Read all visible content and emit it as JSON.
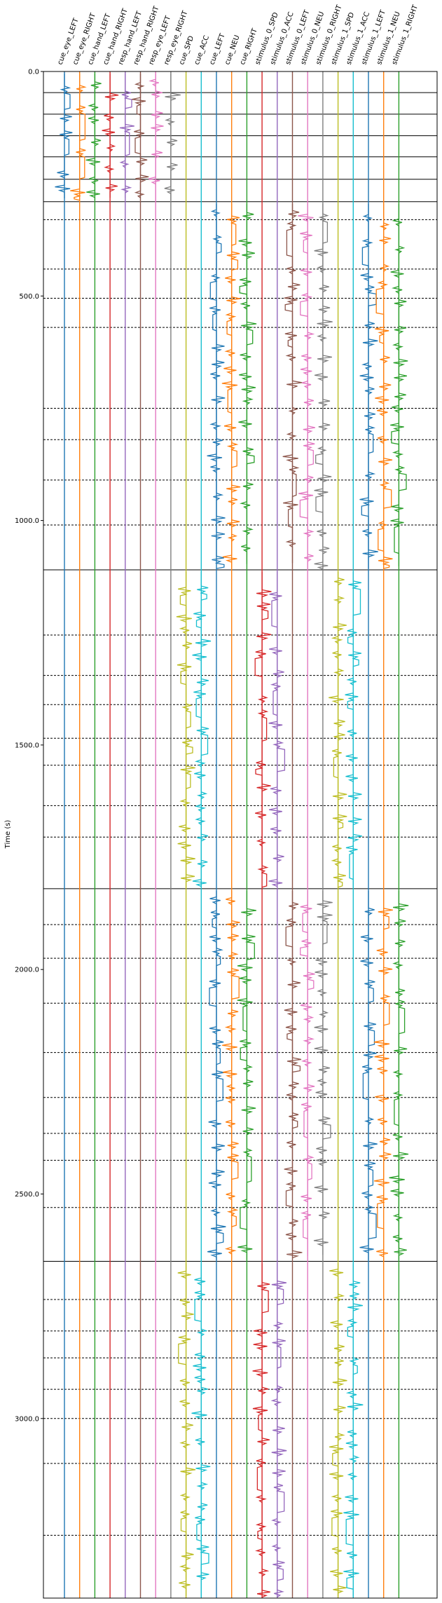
{
  "chart_data": {
    "type": "line",
    "title": "",
    "xlabel": "",
    "ylabel": "Time (s)",
    "ylim": [
      0.0,
      3400.0
    ],
    "y_inverted": true,
    "yticks": [
      {
        "value": 0.0,
        "label": "0.0"
      },
      {
        "value": 500.0,
        "label": "500.0"
      },
      {
        "value": 1000.0,
        "label": "1000.0"
      },
      {
        "value": 1500.0,
        "label": "1500.0"
      },
      {
        "value": 2000.0,
        "label": "2000.0"
      },
      {
        "value": 2500.0,
        "label": "2500.0"
      },
      {
        "value": 3000.0,
        "label": "3000.0"
      }
    ],
    "grid": false,
    "legend": "none",
    "channels": [
      {
        "name": "cue_eye_LEFT",
        "color": "#1f77b4",
        "active": [
          [
            0,
            290
          ]
        ]
      },
      {
        "name": "cue_eye_RIGHT",
        "color": "#ff7f0e",
        "active": [
          [
            0,
            290
          ]
        ]
      },
      {
        "name": "cue_hand_LEFT",
        "color": "#2ca02c",
        "active": [
          [
            0,
            290
          ]
        ]
      },
      {
        "name": "cue_hand_RIGHT",
        "color": "#d62728",
        "active": [
          [
            0,
            290
          ]
        ]
      },
      {
        "name": "resp_hand_LEFT",
        "color": "#9467bd",
        "active": [
          [
            0,
            290
          ]
        ]
      },
      {
        "name": "resp_hand_RIGHT",
        "color": "#8c564b",
        "active": [
          [
            0,
            290
          ]
        ]
      },
      {
        "name": "resp_eye_LEFT",
        "color": "#e377c2",
        "active": [
          [
            0,
            300
          ]
        ]
      },
      {
        "name": "resp_eye_RIGHT",
        "color": "#7f7f7f",
        "active": [
          [
            0,
            290
          ]
        ]
      },
      {
        "name": "cue_SPD",
        "color": "#bcbd22",
        "active": [
          [
            1110,
            1820
          ],
          [
            2650,
            3400
          ]
        ]
      },
      {
        "name": "cue_ACC",
        "color": "#17becf",
        "active": [
          [
            1110,
            1820
          ],
          [
            2650,
            3400
          ]
        ]
      },
      {
        "name": "cue_LEFT",
        "color": "#1f77b4",
        "active": [
          [
            290,
            1110
          ],
          [
            1820,
            2650
          ]
        ]
      },
      {
        "name": "cue_NEU",
        "color": "#ff7f0e",
        "active": [
          [
            290,
            1110
          ],
          [
            1820,
            2650
          ]
        ]
      },
      {
        "name": "cue_RIGHT",
        "color": "#2ca02c",
        "active": [
          [
            290,
            1110
          ],
          [
            1820,
            2650
          ]
        ]
      },
      {
        "name": "stimulus_0_SPD",
        "color": "#d62728",
        "active": [
          [
            1110,
            1820
          ],
          [
            2650,
            3400
          ]
        ]
      },
      {
        "name": "stimulus_0_ACC",
        "color": "#9467bd",
        "active": [
          [
            1110,
            1820
          ],
          [
            2650,
            3400
          ]
        ]
      },
      {
        "name": "stimulus_0_LEFT",
        "color": "#8c564b",
        "active": [
          [
            290,
            1110
          ],
          [
            1820,
            2650
          ]
        ]
      },
      {
        "name": "stimulus_0_NEU",
        "color": "#e377c2",
        "active": [
          [
            290,
            1110
          ],
          [
            1820,
            2650
          ]
        ]
      },
      {
        "name": "stimulus_0_RIGHT",
        "color": "#7f7f7f",
        "active": [
          [
            290,
            1110
          ],
          [
            1820,
            2650
          ]
        ]
      },
      {
        "name": "stimulus_1_SPD",
        "color": "#bcbd22",
        "active": [
          [
            1110,
            1820
          ],
          [
            2650,
            3400
          ]
        ]
      },
      {
        "name": "stimulus_1_ACC",
        "color": "#17becf",
        "active": [
          [
            1110,
            1820
          ],
          [
            2650,
            3400
          ]
        ]
      },
      {
        "name": "stimulus_1_LEFT",
        "color": "#1f77b4",
        "active": [
          [
            290,
            1110
          ],
          [
            1820,
            2650
          ]
        ]
      },
      {
        "name": "stimulus_1_NEU",
        "color": "#ff7f0e",
        "active": [
          [
            290,
            1110
          ],
          [
            1820,
            2650
          ]
        ]
      },
      {
        "name": "stimulus_1_RIGHT",
        "color": "#2ca02c",
        "active": [
          [
            290,
            1110
          ],
          [
            1820,
            2650
          ]
        ]
      }
    ],
    "run_boundaries": [
      47,
      95,
      143,
      190,
      240,
      290,
      1110,
      1820,
      2650
    ],
    "block_boundaries": [
      330,
      440,
      505,
      570,
      750,
      820,
      910,
      1010,
      1255,
      1345,
      1410,
      1485,
      1545,
      1635,
      1705,
      1900,
      1975,
      2075,
      2185,
      2285,
      2365,
      2425,
      2530,
      2735,
      2805,
      2865,
      2935,
      3000,
      3100,
      3260
    ]
  }
}
